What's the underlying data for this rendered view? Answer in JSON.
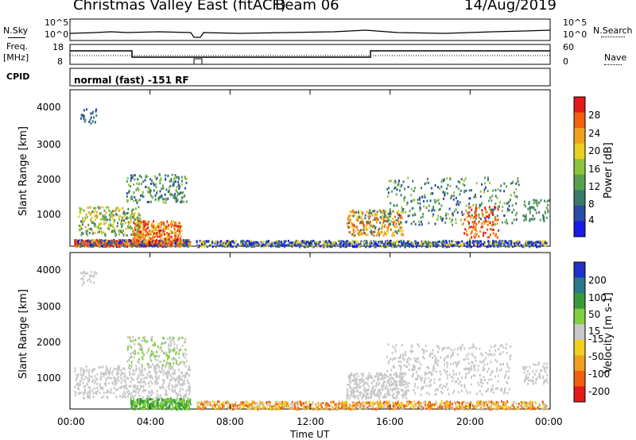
{
  "header": {
    "station": "Christmas Valley East (fitACF)",
    "beam": "Beam 06",
    "date": "14/Aug/2019"
  },
  "params": {
    "nsky_label": "N.Sky",
    "nsearch_label": "N.Search",
    "freq_label_line1": "Freq.",
    "freq_label_line2": "[MHz]",
    "nave_label": "Nave",
    "cpid_label": "CPID",
    "cpid_value": "normal (fast) -151 RF",
    "noise_ticks_left": [
      "10^5",
      "10^0"
    ],
    "noise_ticks_right": [
      "10^5",
      "10^0"
    ],
    "freq_ticks": [
      "18",
      "8"
    ],
    "nave_ticks": [
      "60",
      "0"
    ]
  },
  "chart_data": [
    {
      "type": "heatmap",
      "title": "",
      "xlabel": "Time UT",
      "ylabel": "Slant Range [km]",
      "x_ticks": [
        "00:00",
        "04:00",
        "08:00",
        "12:00",
        "16:00",
        "20:00",
        "00:00"
      ],
      "y_ticks": [
        "1000",
        "2000",
        "3000",
        "4000"
      ],
      "xlim": [
        0,
        24
      ],
      "ylim": [
        180,
        4500
      ],
      "colorbar": {
        "label": "Power [dB]",
        "ticks": [
          "4",
          "8",
          "12",
          "16",
          "20",
          "24",
          "28"
        ],
        "colors": [
          "#1a1ae6",
          "#2a4aa8",
          "#3a7a6a",
          "#58a050",
          "#8cc43c",
          "#e8d020",
          "#f0a020",
          "#f06010",
          "#e41a1a"
        ]
      }
    },
    {
      "type": "heatmap",
      "title": "",
      "xlabel": "Time UT",
      "ylabel": "Slant Range [km]",
      "x_ticks": [
        "00:00",
        "04:00",
        "08:00",
        "12:00",
        "16:00",
        "20:00",
        "00:00"
      ],
      "y_ticks": [
        "1000",
        "2000",
        "3000",
        "4000"
      ],
      "xlim": [
        0,
        24
      ],
      "ylim": [
        180,
        4500
      ],
      "colorbar": {
        "label": "Velocity [m s-1]",
        "ticks": [
          "200",
          "100",
          "50",
          "15",
          "-15",
          "-50",
          "-100",
          "-200"
        ],
        "colors": [
          "#2030c8",
          "#2a7a8a",
          "#3a9a3a",
          "#80d040",
          "#c8c8c8",
          "#f0d020",
          "#f0a020",
          "#f06010",
          "#e41a1a"
        ]
      }
    }
  ]
}
